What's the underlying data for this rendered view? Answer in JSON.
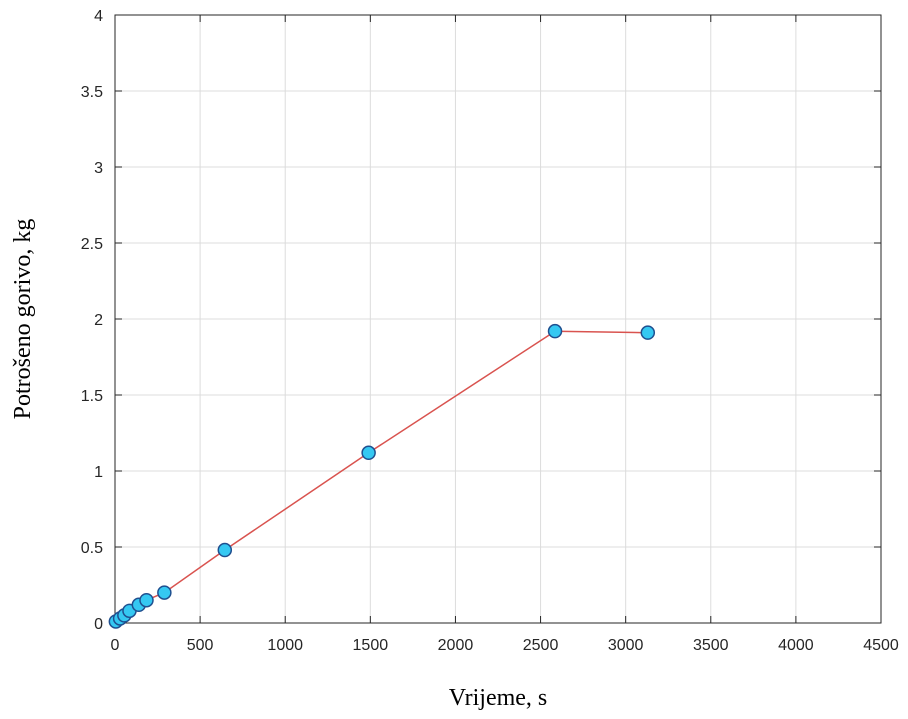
{
  "chart_data": {
    "type": "line",
    "title": "",
    "xlabel": "Vrijeme, s",
    "ylabel": "Potrošeno gorivo, kg",
    "xlim": [
      0,
      4500
    ],
    "ylim": [
      0,
      4
    ],
    "xticks": [
      0,
      500,
      1000,
      1500,
      2000,
      2500,
      3000,
      3500,
      4000,
      4500
    ],
    "yticks": [
      0,
      0.5,
      1,
      1.5,
      2,
      2.5,
      3,
      3.5,
      4
    ],
    "xtick_labels": [
      "0",
      "500",
      "1000",
      "1500",
      "2000",
      "2500",
      "3000",
      "3500",
      "4000",
      "4500"
    ],
    "ytick_labels": [
      "0",
      "0.5",
      "1",
      "1.5",
      "2",
      "2.5",
      "3",
      "3.5",
      "4"
    ],
    "grid": true,
    "legend": "none",
    "series": [
      {
        "x": [
          5,
          30,
          55,
          85,
          140,
          185,
          290,
          645,
          1490,
          2585,
          3130
        ],
        "y": [
          0.01,
          0.03,
          0.05,
          0.08,
          0.12,
          0.15,
          0.2,
          0.48,
          1.12,
          1.92,
          1.91
        ],
        "line_color": "#d9534f",
        "marker_fill": "#35c8f2",
        "marker_edge": "#1f4f8f"
      }
    ]
  }
}
